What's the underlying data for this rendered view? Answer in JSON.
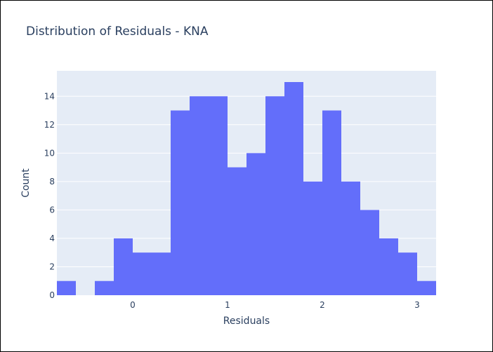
{
  "chart_data": {
    "type": "bar",
    "title": "Distribution of Residuals - KNA",
    "xlabel": "Residuals",
    "ylabel": "Count",
    "x_range": [
      -0.8,
      3.2
    ],
    "ylim": [
      0,
      15.79
    ],
    "bin_width": 0.2,
    "bins": [
      {
        "start": -0.8,
        "end": -0.6,
        "count": 1
      },
      {
        "start": -0.6,
        "end": -0.4,
        "count": 0
      },
      {
        "start": -0.4,
        "end": -0.2,
        "count": 1
      },
      {
        "start": -0.2,
        "end": 0.0,
        "count": 4
      },
      {
        "start": 0.0,
        "end": 0.2,
        "count": 3
      },
      {
        "start": 0.2,
        "end": 0.4,
        "count": 3
      },
      {
        "start": 0.4,
        "end": 0.6,
        "count": 13
      },
      {
        "start": 0.6,
        "end": 0.8,
        "count": 14
      },
      {
        "start": 0.8,
        "end": 1.0,
        "count": 14
      },
      {
        "start": 1.0,
        "end": 1.2,
        "count": 9
      },
      {
        "start": 1.2,
        "end": 1.4,
        "count": 10
      },
      {
        "start": 1.4,
        "end": 1.6,
        "count": 14
      },
      {
        "start": 1.6,
        "end": 1.8,
        "count": 15
      },
      {
        "start": 1.8,
        "end": 2.0,
        "count": 8
      },
      {
        "start": 2.0,
        "end": 2.2,
        "count": 13
      },
      {
        "start": 2.2,
        "end": 2.4,
        "count": 8
      },
      {
        "start": 2.4,
        "end": 2.6,
        "count": 6
      },
      {
        "start": 2.6,
        "end": 2.8,
        "count": 4
      },
      {
        "start": 2.8,
        "end": 3.0,
        "count": 3
      },
      {
        "start": 3.0,
        "end": 3.2,
        "count": 1
      }
    ],
    "x_ticks": [
      0,
      1,
      2,
      3
    ],
    "y_ticks": [
      0,
      2,
      4,
      6,
      8,
      10,
      12,
      14
    ],
    "grid": true,
    "colors": {
      "bar": "#636efa",
      "plot_background": "#e5ecf6",
      "grid": "#ffffff",
      "text": "#2a3f5f"
    }
  }
}
